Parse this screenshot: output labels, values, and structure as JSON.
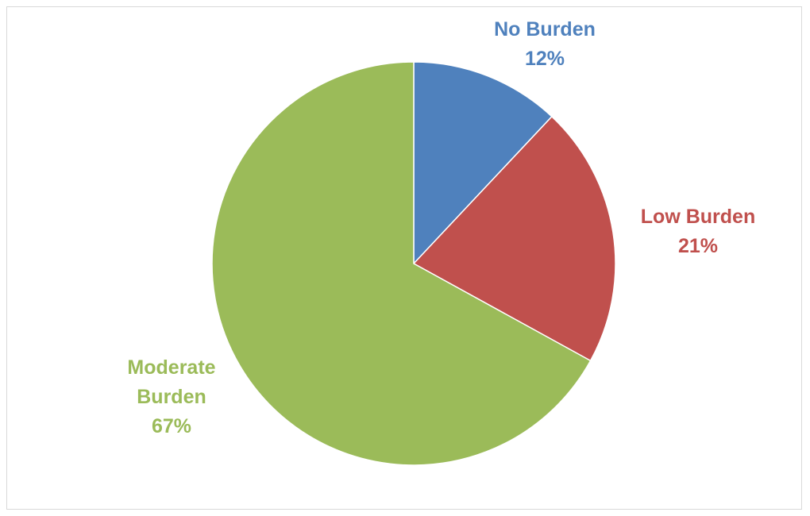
{
  "chart_data": {
    "type": "pie",
    "title": "",
    "slices": [
      {
        "label_lines": [
          "No Burden"
        ],
        "value": 12,
        "value_text": "12%",
        "color": "#4f81bd"
      },
      {
        "label_lines": [
          "Low Burden"
        ],
        "value": 21,
        "value_text": "21%",
        "color": "#c0504d"
      },
      {
        "label_lines": [
          "Moderate",
          "Burden"
        ],
        "value": 67,
        "value_text": "67%",
        "color": "#9bbb59"
      }
    ],
    "start_angle": "12 o'clock",
    "direction": "clockwise",
    "legend": "none",
    "data_labels": "outside, category name and percentage"
  }
}
